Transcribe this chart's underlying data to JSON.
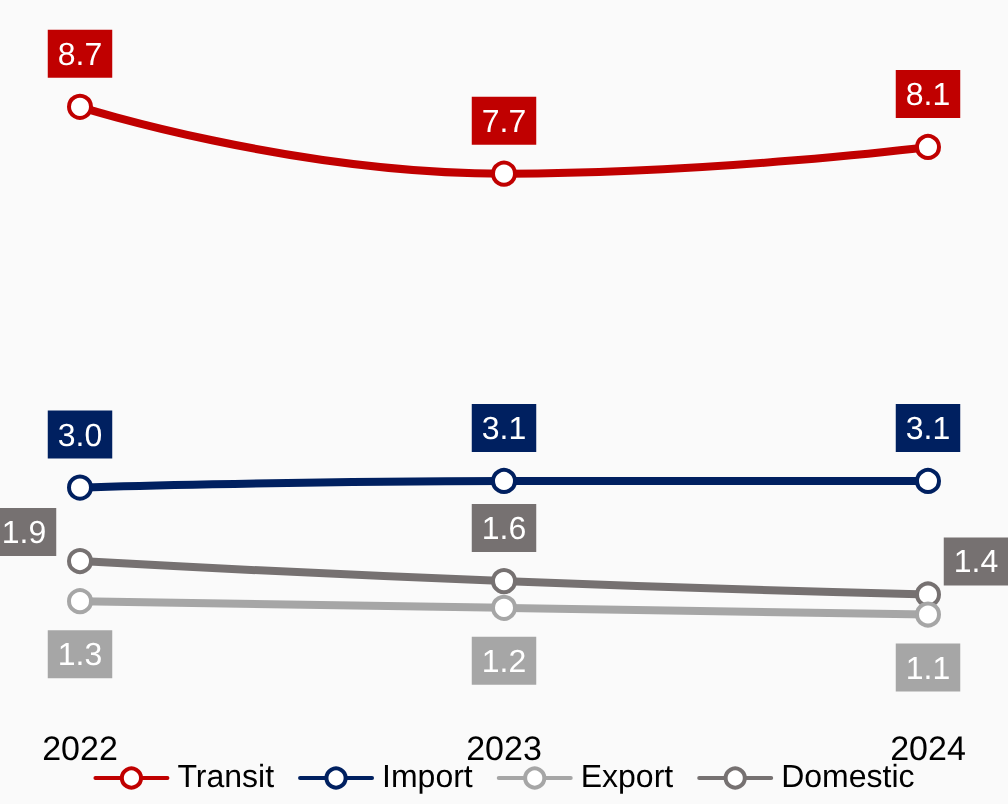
{
  "chart_data": {
    "type": "line",
    "categories": [
      "2022",
      "2023",
      "2024"
    ],
    "series": [
      {
        "name": "Transit",
        "color": "#c00000",
        "values": [
          8.7,
          7.7,
          8.1
        ],
        "value_labels": [
          "8.7",
          "7.7",
          "8.1"
        ]
      },
      {
        "name": "Import",
        "color": "#002060",
        "values": [
          3.0,
          3.1,
          3.1
        ],
        "value_labels": [
          "3.0",
          "3.1",
          "3.1"
        ]
      },
      {
        "name": "Export",
        "color": "#a6a6a6",
        "values": [
          1.3,
          1.2,
          1.1
        ],
        "value_labels": [
          "1.3",
          "1.2",
          "1.1"
        ]
      },
      {
        "name": "Domestic",
        "color": "#767171",
        "values": [
          1.9,
          1.6,
          1.4
        ],
        "value_labels": [
          "1.9",
          "1.6",
          "1.4"
        ]
      }
    ],
    "marker": "circle",
    "line_style": "solid",
    "legend": "bottom",
    "grid": false,
    "tick_labels": "x"
  }
}
